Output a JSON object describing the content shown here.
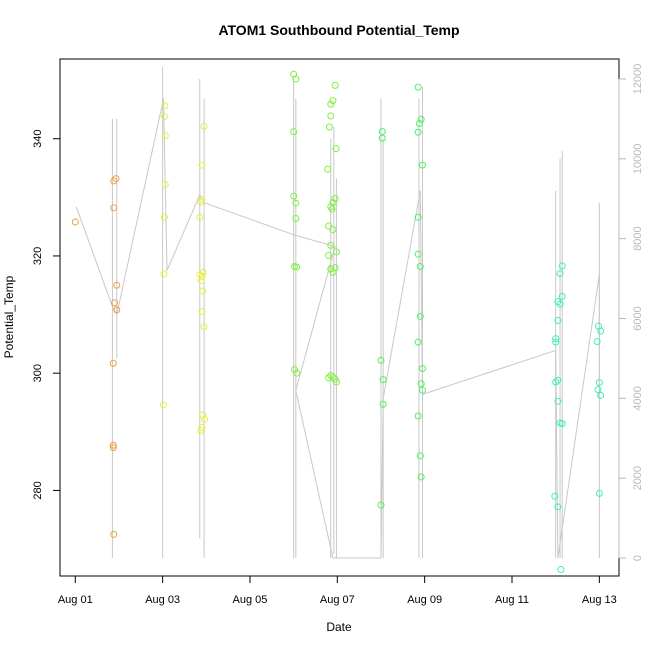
{
  "chart_data": {
    "type": "scatter",
    "title": "ATOM1 Southbound Potential_Temp",
    "xlabel": "Date",
    "ylabel": "Potential_Temp",
    "x_ticks": [
      "Aug 01",
      "Aug 03",
      "Aug 05",
      "Aug 07",
      "Aug 09",
      "Aug 11",
      "Aug 13"
    ],
    "x_tick_days": [
      1,
      3,
      5,
      7,
      9,
      11,
      13
    ],
    "xlim_days": [
      0.65,
      13.45
    ],
    "ylim": [
      265.4,
      353.6
    ],
    "y_ticks": [
      280,
      300,
      320,
      340
    ],
    "y2_ticks": [
      0,
      2000,
      4000,
      6000,
      8000,
      10000,
      12000
    ],
    "y2lim": [
      -450,
      12500
    ],
    "y2_color": "#b8b8b8",
    "line_color": "#c8c8c8",
    "grid": false,
    "series": [
      {
        "color": "#f0a040",
        "points": [
          [
            1.0,
            325.8
          ],
          [
            1.88,
            332.8
          ],
          [
            1.93,
            333.2
          ],
          [
            1.88,
            328.2
          ],
          [
            1.95,
            315.0
          ],
          [
            1.9,
            312.0
          ],
          [
            1.95,
            310.8
          ],
          [
            1.87,
            301.7
          ],
          [
            1.87,
            287.7
          ],
          [
            1.87,
            287.3
          ],
          [
            1.88,
            272.5
          ]
        ]
      },
      {
        "color": "#e6f040",
        "points": [
          [
            3.05,
            345.6
          ],
          [
            3.04,
            343.8
          ],
          [
            3.06,
            340.5
          ],
          [
            3.06,
            332.2
          ],
          [
            3.04,
            326.6
          ],
          [
            3.03,
            316.9
          ],
          [
            3.02,
            294.6
          ],
          [
            3.95,
            342.1
          ],
          [
            3.9,
            335.5
          ],
          [
            3.87,
            329.2
          ],
          [
            3.9,
            329.6
          ],
          [
            3.85,
            326.6
          ],
          [
            3.93,
            317.2
          ],
          [
            3.85,
            316.8
          ],
          [
            3.9,
            316.5
          ],
          [
            3.88,
            315.8
          ],
          [
            3.92,
            314.0
          ],
          [
            3.9,
            310.5
          ],
          [
            3.95,
            307.9
          ],
          [
            3.92,
            292.9
          ],
          [
            3.96,
            292.1
          ],
          [
            3.9,
            290.7
          ],
          [
            3.87,
            290.2
          ]
        ]
      },
      {
        "color": "#80f040",
        "points": [
          [
            6.0,
            351.0
          ],
          [
            6.05,
            350.2
          ],
          [
            6.0,
            341.2
          ],
          [
            6.0,
            330.2
          ],
          [
            6.05,
            329.0
          ],
          [
            6.05,
            326.4
          ],
          [
            6.02,
            318.2
          ],
          [
            6.07,
            318.1
          ],
          [
            6.02,
            300.6
          ],
          [
            6.07,
            300.0
          ],
          [
            6.95,
            349.1
          ],
          [
            6.9,
            346.5
          ],
          [
            6.85,
            345.9
          ],
          [
            6.85,
            343.9
          ],
          [
            6.82,
            342.0
          ],
          [
            6.97,
            338.3
          ],
          [
            6.78,
            334.8
          ],
          [
            6.95,
            329.8
          ],
          [
            6.9,
            329.1
          ],
          [
            6.85,
            328.4
          ],
          [
            6.88,
            328.0
          ],
          [
            6.8,
            325.1
          ],
          [
            6.9,
            324.5
          ],
          [
            6.85,
            321.8
          ],
          [
            6.98,
            320.7
          ],
          [
            6.8,
            320.1
          ],
          [
            6.95,
            318.0
          ],
          [
            6.85,
            317.8
          ],
          [
            6.9,
            317.2
          ],
          [
            6.85,
            299.6
          ],
          [
            6.9,
            299.3
          ],
          [
            6.8,
            299.2
          ],
          [
            6.95,
            299.0
          ],
          [
            6.98,
            298.5
          ]
        ]
      },
      {
        "color": "#50f060",
        "points": [
          [
            8.03,
            341.2
          ],
          [
            8.03,
            340.1
          ],
          [
            8.0,
            302.2
          ],
          [
            8.05,
            298.9
          ],
          [
            8.05,
            294.7
          ],
          [
            8.0,
            277.5
          ],
          [
            8.85,
            348.8
          ],
          [
            8.92,
            343.3
          ],
          [
            8.88,
            342.6
          ],
          [
            8.85,
            341.1
          ],
          [
            8.95,
            335.5
          ],
          [
            8.85,
            326.6
          ],
          [
            8.85,
            320.3
          ],
          [
            8.9,
            318.2
          ],
          [
            8.9,
            309.7
          ],
          [
            8.85,
            305.3
          ],
          [
            8.95,
            300.8
          ],
          [
            8.92,
            298.2
          ],
          [
            8.95,
            297.1
          ],
          [
            8.85,
            292.7
          ],
          [
            8.9,
            285.9
          ],
          [
            8.92,
            282.3
          ]
        ]
      },
      {
        "color": "#40f0b0",
        "points": [
          [
            12.15,
            318.3
          ],
          [
            12.1,
            317.0
          ],
          [
            12.15,
            313.1
          ],
          [
            12.05,
            312.2
          ],
          [
            12.1,
            311.8
          ],
          [
            12.05,
            309.0
          ],
          [
            12.0,
            305.9
          ],
          [
            12.0,
            305.3
          ],
          [
            12.05,
            298.8
          ],
          [
            12.0,
            298.5
          ],
          [
            12.05,
            295.2
          ],
          [
            12.1,
            291.5
          ],
          [
            12.15,
            291.4
          ],
          [
            11.98,
            279.0
          ],
          [
            12.05,
            277.2
          ],
          [
            12.12,
            266.5
          ],
          [
            12.98,
            308.0
          ],
          [
            13.03,
            307.2
          ],
          [
            12.95,
            305.4
          ],
          [
            13.0,
            298.4
          ],
          [
            12.97,
            297.2
          ],
          [
            13.03,
            296.2
          ],
          [
            13.0,
            279.5
          ]
        ]
      }
    ],
    "depth_profiles": [
      {
        "x": 1.85,
        "ytop": 11000,
        "ybot": 0
      },
      {
        "x": 1.95,
        "ytop": 11000,
        "ybot": 5000
      },
      {
        "x": 3.0,
        "ytop": 12300,
        "ybot": 0
      },
      {
        "x": 3.85,
        "ytop": 12000,
        "ybot": 500
      },
      {
        "x": 3.95,
        "ytop": 11500,
        "ybot": 0
      },
      {
        "x": 6.0,
        "ytop": 12000,
        "ybot": 0
      },
      {
        "x": 6.05,
        "ytop": 11500,
        "ybot": 0
      },
      {
        "x": 6.85,
        "ytop": 10500,
        "ybot": 0
      },
      {
        "x": 6.92,
        "ytop": 10800,
        "ybot": 100
      },
      {
        "x": 6.98,
        "ytop": 9500,
        "ybot": 0
      },
      {
        "x": 8.0,
        "ytop": 11500,
        "ybot": 0
      },
      {
        "x": 8.05,
        "ytop": 10500,
        "ybot": 0
      },
      {
        "x": 8.87,
        "ytop": 11500,
        "ybot": 0
      },
      {
        "x": 8.95,
        "ytop": 11800,
        "ybot": 0
      },
      {
        "x": 12.0,
        "ytop": 9200,
        "ybot": 0
      },
      {
        "x": 12.1,
        "ytop": 10000,
        "ybot": 0
      },
      {
        "x": 12.15,
        "ytop": 10200,
        "ybot": 0
      },
      {
        "x": 13.0,
        "ytop": 8900,
        "ybot": 0
      }
    ],
    "transect_path": [
      [
        1.02,
        8800
      ],
      [
        1.85,
        6300
      ],
      [
        1.95,
        6100
      ],
      [
        3.02,
        11500
      ],
      [
        3.1,
        7200
      ],
      [
        3.85,
        9100
      ],
      [
        3.95,
        8900
      ],
      [
        6.0,
        8100
      ],
      [
        6.95,
        7800
      ],
      [
        6.05,
        4200
      ],
      [
        6.9,
        0
      ],
      [
        8.0,
        0
      ],
      [
        8.05,
        4000
      ],
      [
        8.9,
        9200
      ],
      [
        8.95,
        4100
      ],
      [
        12.0,
        5200
      ],
      [
        12.05,
        0
      ],
      [
        13.0,
        7100
      ],
      [
        13.0,
        4000
      ]
    ]
  }
}
